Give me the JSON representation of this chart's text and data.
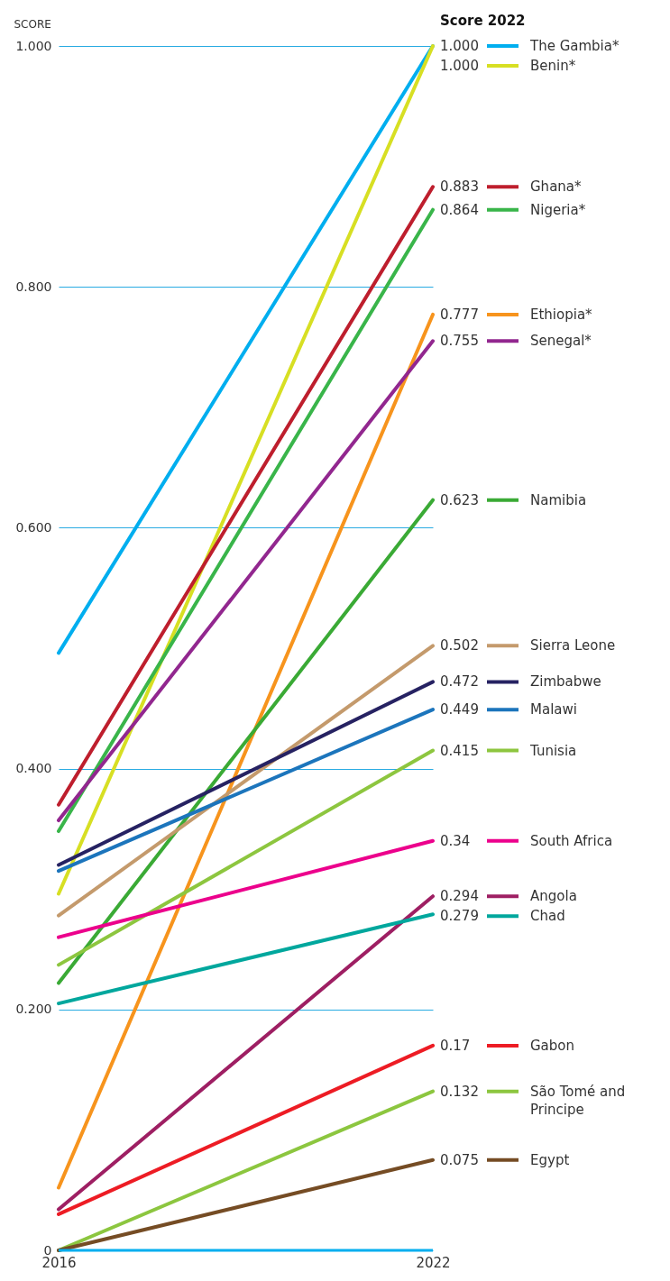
{
  "chart_data": {
    "type": "line",
    "ylabel": "SCORE",
    "legend_title": "Score 2022",
    "legend": "right",
    "grid": "y",
    "x": [
      2016,
      2022
    ],
    "xlim": [
      2016,
      2022
    ],
    "xticks": [
      2016,
      2022
    ],
    "ylim": [
      0,
      1
    ],
    "yticks": [
      {
        "value": 0,
        "label": "0"
      },
      {
        "value": 0.2,
        "label": "0.200"
      },
      {
        "value": 0.4,
        "label": "0.400"
      },
      {
        "value": 0.6,
        "label": "0.600"
      },
      {
        "value": 0.8,
        "label": "0.800"
      },
      {
        "value": 1,
        "label": "1.000"
      }
    ],
    "series": [
      {
        "name": "The Gambia*",
        "color": "#00aeef",
        "values": [
          0.496,
          1.0
        ],
        "value_labels": [
          null,
          "1.000"
        ]
      },
      {
        "name": "Benin*",
        "color": "#d7df23",
        "values": [
          0.296,
          1.0
        ],
        "value_labels": [
          null,
          "1.000"
        ]
      },
      {
        "name": "Ghana*",
        "color": "#be1e2d",
        "values": [
          0.37,
          0.883
        ],
        "value_labels": [
          null,
          "0.883"
        ]
      },
      {
        "name": "Nigeria*",
        "color": "#39b54a",
        "values": [
          0.348,
          0.864
        ],
        "value_labels": [
          null,
          "0.864"
        ]
      },
      {
        "name": "Ethiopia*",
        "color": "#f7941d",
        "values": [
          0.052,
          0.777
        ],
        "value_labels": [
          null,
          "0.777"
        ]
      },
      {
        "name": "Senegal*",
        "color": "#92278f",
        "values": [
          0.357,
          0.755
        ],
        "value_labels": [
          null,
          "0.755"
        ]
      },
      {
        "name": "Namibia",
        "color": "#3aaa35",
        "values": [
          0.222,
          0.623
        ],
        "value_labels": [
          null,
          "0.623"
        ]
      },
      {
        "name": "Sierra Leone",
        "color": "#c49a6c",
        "values": [
          0.278,
          0.502
        ],
        "value_labels": [
          null,
          "0.502"
        ]
      },
      {
        "name": "Zimbabwe",
        "color": "#262262",
        "values": [
          0.32,
          0.472
        ],
        "value_labels": [
          null,
          "0.472"
        ]
      },
      {
        "name": "Malawi",
        "color": "#1c75bc",
        "values": [
          0.315,
          0.449
        ],
        "value_labels": [
          null,
          "0.449"
        ]
      },
      {
        "name": "Tunisia",
        "color": "#8dc63f",
        "values": [
          0.237,
          0.415
        ],
        "value_labels": [
          null,
          "0.415"
        ]
      },
      {
        "name": "South Africa",
        "color": "#ec008c",
        "values": [
          0.26,
          0.34
        ],
        "value_labels": [
          null,
          "0.34"
        ]
      },
      {
        "name": "Angola",
        "color": "#9e1f63",
        "values": [
          0.034,
          0.294
        ],
        "value_labels": [
          null,
          "0.294"
        ]
      },
      {
        "name": "Chad",
        "color": "#00a79d",
        "values": [
          0.205,
          0.279
        ],
        "value_labels": [
          null,
          "0.279"
        ]
      },
      {
        "name": "Gabon",
        "color": "#ed1c24",
        "values": [
          0.03,
          0.17
        ],
        "value_labels": [
          null,
          "0.17"
        ]
      },
      {
        "name": "São Tomé and Principe",
        "color": "#8cc63f",
        "values": [
          0,
          0.132
        ],
        "value_labels": [
          null,
          "0.132"
        ]
      },
      {
        "name": "Egypt",
        "color": "#754c24",
        "values": [
          0,
          0.075
        ],
        "value_labels": [
          null,
          "0.075"
        ]
      }
    ]
  }
}
